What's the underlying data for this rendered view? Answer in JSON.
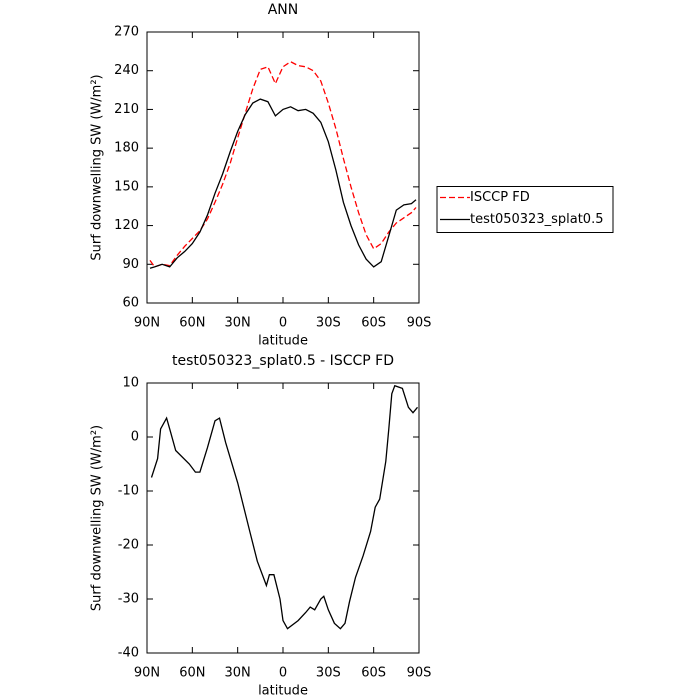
{
  "chart_data": [
    {
      "type": "line",
      "title": "ANN",
      "xlabel": "latitude",
      "ylabel": "Surf downwelling SW (W/m²)",
      "x": [
        88,
        85,
        80,
        75,
        70,
        65,
        60,
        55,
        50,
        45,
        40,
        35,
        30,
        25,
        20,
        15,
        10,
        5,
        0,
        -5,
        -10,
        -15,
        -20,
        -25,
        -30,
        -35,
        -40,
        -45,
        -50,
        -55,
        -60,
        -65,
        -70,
        -75,
        -80,
        -85,
        -88
      ],
      "series": [
        {
          "name": "ISCCP FD",
          "color": "#ff0000",
          "dashed": true,
          "values": [
            93,
            88,
            90,
            89,
            97,
            104,
            110,
            116,
            125,
            138,
            152,
            168,
            188,
            207,
            226,
            241,
            243,
            230,
            243,
            247,
            244,
            243,
            240,
            232,
            215,
            195,
            172,
            150,
            130,
            113,
            102,
            106,
            115,
            122,
            126,
            130,
            134
          ]
        },
        {
          "name": "test050323_splat0.5",
          "color": "#000000",
          "dashed": false,
          "values": [
            87,
            88,
            90,
            88,
            95,
            100,
            106,
            115,
            128,
            145,
            160,
            177,
            193,
            206,
            215,
            218,
            216,
            205,
            210,
            212,
            209,
            210,
            207,
            200,
            185,
            163,
            138,
            120,
            105,
            94,
            88,
            92,
            112,
            132,
            136,
            137,
            140
          ]
        }
      ],
      "xlim": [
        90,
        -90
      ],
      "xticks": [
        {
          "value": 90,
          "label": "90N"
        },
        {
          "value": 60,
          "label": "60N"
        },
        {
          "value": 30,
          "label": "30N"
        },
        0,
        {
          "value": -30,
          "label": "30S"
        },
        {
          "value": -60,
          "label": "60S"
        },
        {
          "value": -90,
          "label": "90S"
        }
      ],
      "ylim": [
        60,
        270
      ],
      "yticks": [
        60,
        90,
        120,
        150,
        180,
        210,
        240,
        270
      ],
      "legend": "right"
    },
    {
      "type": "line",
      "title": "test050323_splat0.5 - ISCCP FD",
      "xlabel": "latitude",
      "ylabel": "Surf downwelling SW (W/m²)",
      "x": [
        87,
        83,
        81,
        77,
        75,
        71,
        62,
        58,
        55,
        50,
        45,
        42,
        38,
        30,
        22,
        17,
        11,
        9,
        6,
        2,
        0,
        -3,
        -10,
        -15,
        -18,
        -21,
        -25,
        -27,
        -30,
        -34,
        -38,
        -41,
        -44,
        -48,
        -53,
        -58,
        -61,
        -64,
        -68,
        -70,
        -72,
        -74,
        -79,
        -83,
        -86,
        -89
      ],
      "values": [
        -7.5,
        -4,
        1.5,
        3.5,
        1.5,
        -2.5,
        -5,
        -6.5,
        -6.5,
        -2,
        3,
        3.5,
        -1,
        -8.5,
        -17.5,
        -23,
        -27.5,
        -25.5,
        -25.5,
        -30,
        -34,
        -35.5,
        -34,
        -32.5,
        -31.5,
        -32,
        -30,
        -29.5,
        -32,
        -34.5,
        -35.5,
        -34.5,
        -30.5,
        -26,
        -22,
        -17.5,
        -13,
        -11.5,
        -4.5,
        1.5,
        8,
        9.5,
        9,
        5.5,
        4.5,
        5.5
      ],
      "color": "#000000",
      "xlim": [
        90,
        -90
      ],
      "xticks": [
        {
          "value": 90,
          "label": "90N"
        },
        {
          "value": 60,
          "label": "60N"
        },
        {
          "value": 30,
          "label": "30N"
        },
        0,
        {
          "value": -30,
          "label": "30S"
        },
        {
          "value": -60,
          "label": "60S"
        },
        {
          "value": -90,
          "label": "90S"
        }
      ],
      "ylim": [
        -40,
        10
      ],
      "yticks": [
        -40,
        -30,
        -20,
        -10,
        0,
        10
      ]
    }
  ]
}
